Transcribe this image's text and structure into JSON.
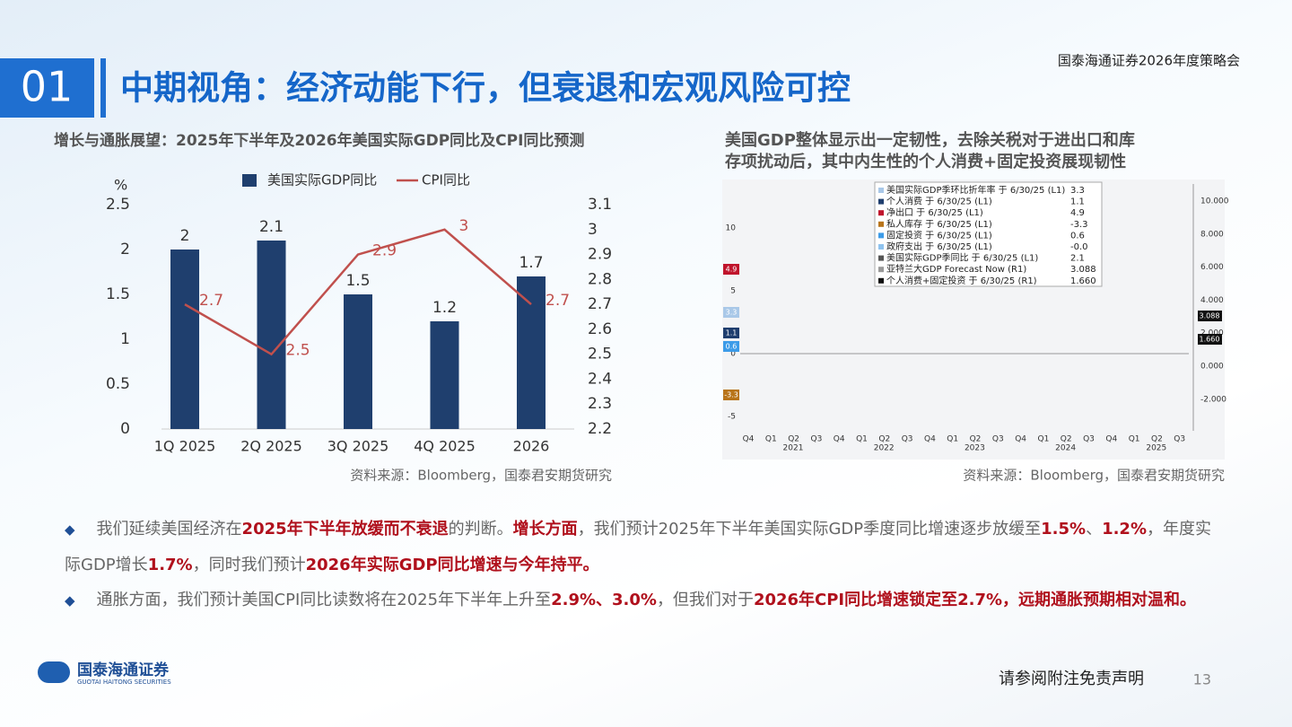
{
  "header": {
    "event": "国泰海通证券2026年度策略会",
    "number": "01",
    "title": "中期视角：经济动能下行，但衰退和宏观风险可控"
  },
  "chart_data": {
    "type": "bar",
    "title": "增长与通胀展望：2025年下半年及2026年美国实际GDP同比及CPI同比预测",
    "y_label": "%",
    "categories": [
      "1Q 2025",
      "2Q 2025",
      "3Q 2025",
      "4Q 2025",
      "2026"
    ],
    "series": [
      {
        "name": "美国实际GDP同比",
        "type": "bar",
        "color": "#1f3f6e",
        "values": [
          2,
          2.1,
          1.5,
          1.2,
          1.7
        ]
      },
      {
        "name": "CPI同比",
        "type": "line",
        "axis": "y2",
        "color": "#c0504d",
        "values": [
          2.7,
          2.5,
          2.9,
          3,
          2.7
        ]
      }
    ],
    "ylim": [
      0,
      2.5
    ],
    "yticks": [
      0,
      0.5,
      1,
      1.5,
      2,
      2.5
    ],
    "y2lim": [
      2.2,
      3.1
    ],
    "y2ticks": [
      2.2,
      2.3,
      2.4,
      2.5,
      2.6,
      2.7,
      2.8,
      2.9,
      3,
      3.1
    ],
    "source": "资料来源：Bloomberg，国泰君安期货研究"
  },
  "bloomberg_figure": {
    "title_lines": [
      "美国GDP整体显示出一定韧性，去除关税对于进出口和库",
      "存项扰动后，其中内生性的个人消费+固定投资展现韧性"
    ],
    "legend": [
      {
        "label": "美国实际GDP季环比折年率 于 6/30/25 (L1)",
        "value": "3.3",
        "color": "#a9c8e8"
      },
      {
        "label": "个人消费 于 6/30/25 (L1)",
        "value": "1.1",
        "color": "#1f3e6e"
      },
      {
        "label": "净出口 于 6/30/25 (L1)",
        "value": "4.9",
        "color": "#c0142c"
      },
      {
        "label": "私人库存 于 6/30/25 (L1)",
        "value": "-3.3",
        "color": "#b8741a"
      },
      {
        "label": "固定投资 于 6/30/25 (L1)",
        "value": "0.6",
        "color": "#3c9be8"
      },
      {
        "label": "政府支出 于 6/30/25 (L1)",
        "value": "-0.0",
        "color": "#8fc3ef"
      },
      {
        "label": "美国实际GDP季同比 于 6/30/25 (L1)",
        "value": "2.1",
        "color": "#555555"
      },
      {
        "label": "亚特兰大GDP Forecast Now (R1)",
        "value": "3.088",
        "color": "#999999"
      },
      {
        "label": "个人消费+固定投资 于 6/30/25 (R1)",
        "value": "1.660",
        "color": "#111111"
      }
    ],
    "left_ticks": [
      "10",
      "5",
      "0",
      "-5"
    ],
    "right_ticks": [
      "10.000",
      "8.000",
      "6.000",
      "4.000",
      "2.000",
      "0.000",
      "-2.000"
    ],
    "x_labels": [
      "Q4",
      "Q1",
      "Q2",
      "Q3",
      "Q4",
      "Q1",
      "Q2",
      "Q3",
      "Q4",
      "Q1",
      "Q2",
      "Q3",
      "Q4",
      "Q1",
      "Q2",
      "Q3",
      "Q4",
      "Q1",
      "Q2",
      "Q3"
    ],
    "year_labels": [
      "2021",
      "2022",
      "2023",
      "2024",
      "2025"
    ],
    "left_tags": [
      {
        "text": "4.9",
        "color": "#c0142c"
      },
      {
        "text": "3.3",
        "color": "#a9c8e8"
      },
      {
        "text": "1.1",
        "color": "#1f3e6e"
      },
      {
        "text": "0.6",
        "color": "#3c9be8"
      },
      {
        "text": "-3.3",
        "color": "#b8741a"
      }
    ],
    "right_tags": [
      "3.088",
      "1.660"
    ],
    "source": "资料来源：Bloomberg，国泰君安期货研究"
  },
  "bullets": [
    {
      "segments": [
        {
          "text": "我们延续美国经济在",
          "emphasis": false
        },
        {
          "text": "2025年下半年放缓而不衰退",
          "emphasis": true
        },
        {
          "text": "的判断。",
          "emphasis": false
        },
        {
          "text": "增长方面",
          "emphasis": true
        },
        {
          "text": "，我们预计2025年下半年美国实际GDP季度同比增速逐步放缓至",
          "emphasis": false
        },
        {
          "text": "1.5%",
          "emphasis": true
        },
        {
          "text": "、",
          "emphasis": false
        },
        {
          "text": "1.2%",
          "emphasis": true
        },
        {
          "text": "，年度实际GDP增长",
          "emphasis": false
        },
        {
          "text": "1.7%",
          "emphasis": true
        },
        {
          "text": "，同时我们预计",
          "emphasis": false
        },
        {
          "text": "2026年实际GDP同比增速与今年持平。",
          "emphasis": true
        }
      ]
    },
    {
      "segments": [
        {
          "text": "通胀方面，我们预计美国CPI同比读数将在2025年下半年上升至",
          "emphasis": false
        },
        {
          "text": "2.9%、3.0%",
          "emphasis": true
        },
        {
          "text": "，但我们对于",
          "emphasis": false
        },
        {
          "text": "2026年CPI同比增速锁定至2.7%，远期通胀预期相对温和。",
          "emphasis": true
        }
      ]
    }
  ],
  "footer": {
    "company": "国泰海通证券",
    "company_en": "GUOTAI HAITONG SECURITIES",
    "disclaimer": "请参阅附注免责声明",
    "page": "13"
  }
}
